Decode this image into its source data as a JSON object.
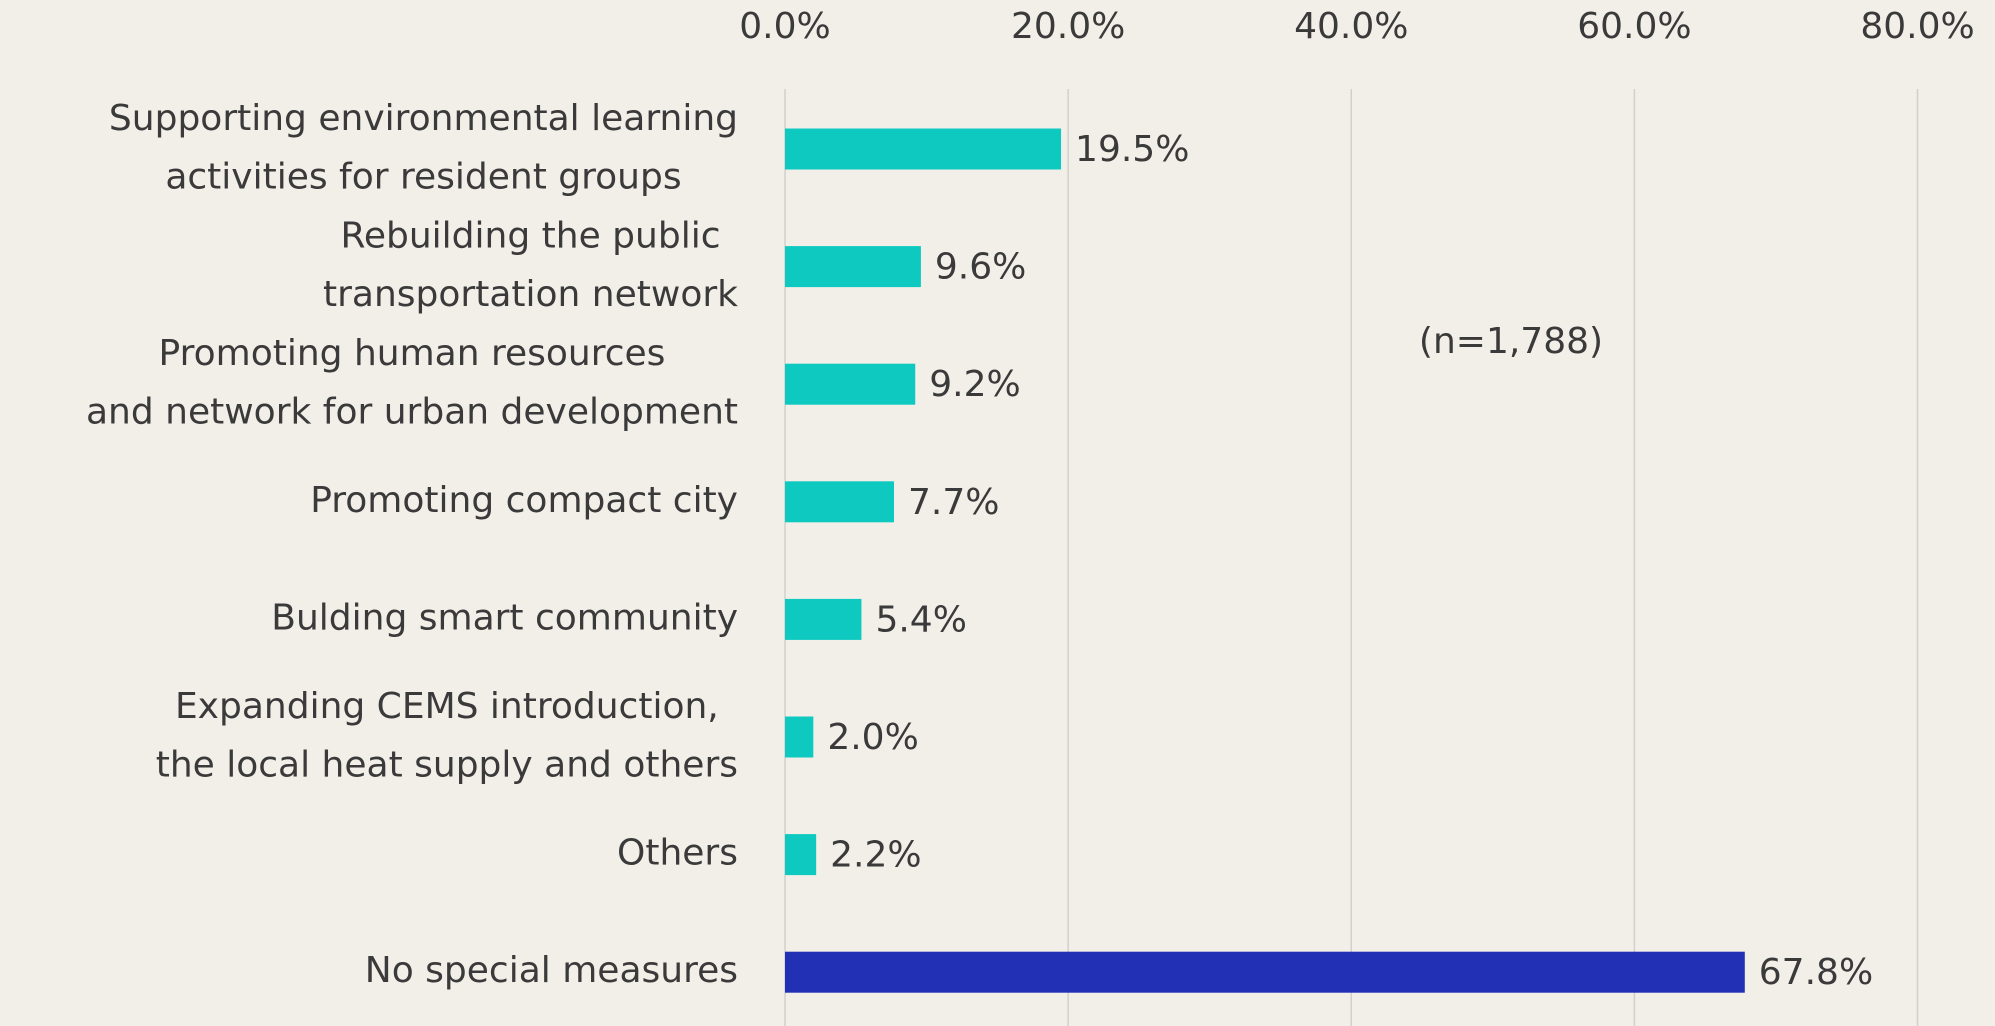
{
  "chart_data": {
    "type": "bar",
    "orientation": "horizontal",
    "categories": [
      [
        "Supporting environmental learning",
        "activities for resident groups"
      ],
      [
        "Rebuilding the public",
        "transportation network"
      ],
      [
        "Promoting human resources",
        "and network for urban development"
      ],
      [
        "Promoting compact city"
      ],
      [
        "Bulding smart community"
      ],
      [
        "Expanding CEMS introduction,",
        "the local heat supply and others"
      ],
      [
        "Others"
      ],
      [
        "No special measures"
      ]
    ],
    "values": [
      19.5,
      9.6,
      9.2,
      7.7,
      5.4,
      2.0,
      2.2,
      67.8
    ],
    "value_labels": [
      "19.5%",
      "9.6%",
      "9.2%",
      "7.7%",
      "5.4%",
      "2.0%",
      "2.2%",
      "67.8%"
    ],
    "colors": [
      "#0dc9c0",
      "#0dc9c0",
      "#0dc9c0",
      "#0dc9c0",
      "#0dc9c0",
      "#0dc9c0",
      "#0dc9c0",
      "#2230b6"
    ],
    "xlim": [
      0,
      80
    ],
    "xticks": [
      {
        "value": 0,
        "label": "0.0%"
      },
      {
        "value": 20,
        "label": "20.0%"
      },
      {
        "value": 40,
        "label": "40.0%"
      },
      {
        "value": 60,
        "label": "60.0%"
      },
      {
        "value": 80,
        "label": "80.0%"
      }
    ],
    "grid": true,
    "annotation": "(n=1,788)"
  }
}
